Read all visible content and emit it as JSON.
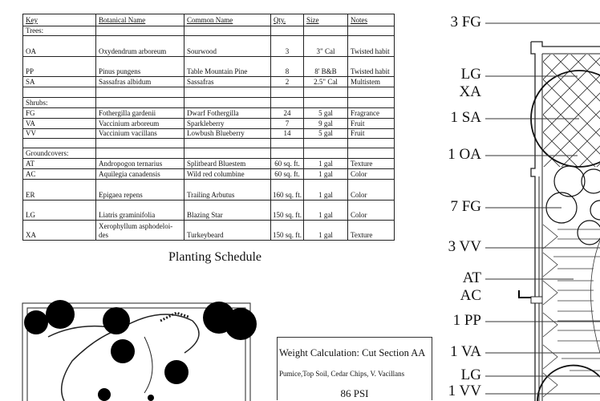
{
  "schedule": {
    "headers": [
      "Key",
      "Botanical Name",
      "Common Name",
      "Qty.",
      "Size",
      "Notes"
    ],
    "sections": {
      "trees": "Trees:",
      "shrubs": "Shrubs:",
      "groundcovers": "Groundcovers:"
    },
    "rows": [
      [
        "OA",
        "Oxydendrum arboreum",
        "Sourwood",
        "3",
        "3\" Cal",
        "Twisted habit"
      ],
      [
        "PP",
        "Pinus pungens",
        "Table Mountain Pine",
        "8",
        "8' B&B",
        "Twisted habit"
      ],
      [
        "SA",
        "Sassafras albidum",
        "Sassafras",
        "2",
        "2.5\" Cal",
        "Multistem"
      ],
      [
        "FG",
        "Fothergilla gardenii",
        "Dwarf  Fothergilla",
        "24",
        "5 gal",
        "Fragrance"
      ],
      [
        "VA",
        "Vaccinium arboreum",
        "Sparkleberry",
        "7",
        "9 gal",
        "Fruit"
      ],
      [
        "VV",
        "Vaccinium vacillans",
        "Lowbush Blueberry",
        "14",
        "5 gal",
        "Fruit"
      ],
      [
        "AT",
        "Andropogon ternarius",
        "Splitbeard Bluestem",
        "60 sq. ft.",
        "1 gal",
        "Texture"
      ],
      [
        "AC",
        "Aquilegia canadensis",
        "Wild red columbine",
        "60 sq. ft.",
        "1 gal",
        "Color"
      ],
      [
        "ER",
        "Epigaea repens",
        "Trailing Arbutus",
        "160 sq. ft.",
        "1 gal",
        "Color"
      ],
      [
        "LG",
        "Liatris graminifolia",
        "Blazing Star",
        "150 sq. ft.",
        "1 gal",
        "Color"
      ],
      [
        "XA",
        "Xerophyllum asphodeloi-des",
        "Turkeybeard",
        "150 sq. ft.",
        "1 gal",
        "Texture"
      ]
    ],
    "caption": "Planting Schedule"
  },
  "weight": {
    "title": "Weight Calculation: Cut Section AA",
    "materials": "Pumice,Top Soil, Cedar Chips, V. Vacillans",
    "value": "86 PSI"
  },
  "plan_labels": [
    "3 FG",
    "LG",
    "XA",
    "1 SA",
    "1 OA",
    "7 FG",
    "3 VV",
    "AT",
    "AC",
    "1 PP",
    "1 VA",
    "LG",
    "1 VV"
  ]
}
